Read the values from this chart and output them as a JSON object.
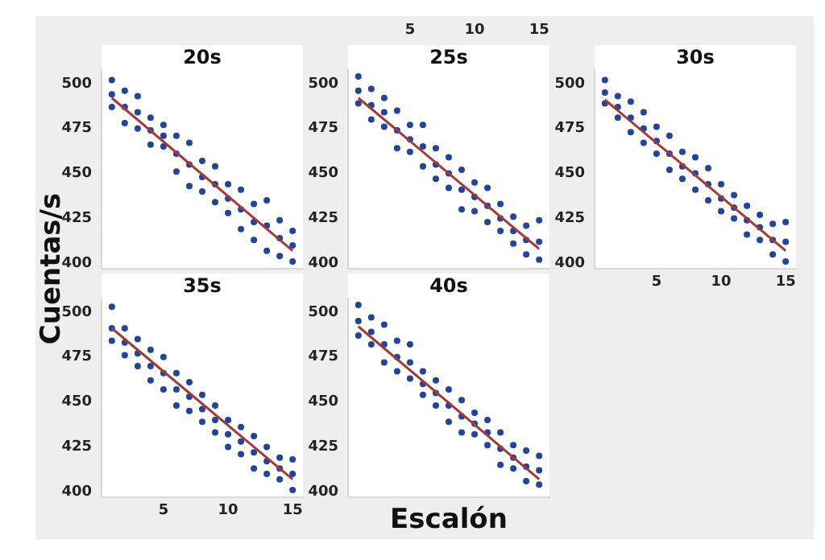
{
  "chart_data": [
    {
      "type": "scatter",
      "title": "20s",
      "xlim": [
        0.2,
        15.8
      ],
      "ylim": [
        397,
        508
      ],
      "yticks": [
        400,
        425,
        450,
        475,
        500
      ],
      "tick_labels": "y",
      "grid": false,
      "marker": "circle",
      "legend": false,
      "series": [
        {
          "type": "scatter",
          "color": "#23449c",
          "x": [
            1,
            1,
            1,
            2,
            2,
            2,
            3,
            3,
            3,
            4,
            4,
            4,
            5,
            5,
            5,
            6,
            6,
            6,
            7,
            7,
            7,
            8,
            8,
            8,
            9,
            9,
            9,
            10,
            10,
            10,
            11,
            11,
            11,
            12,
            12,
            12,
            13,
            13,
            13,
            14,
            14,
            14,
            15,
            15,
            15
          ],
          "values": [
            502,
            494,
            487,
            496,
            487,
            478,
            493,
            484,
            475,
            481,
            474,
            466,
            477,
            471,
            465,
            471,
            461,
            451,
            467,
            455,
            443,
            457,
            448,
            440,
            454,
            444,
            434,
            444,
            436,
            428,
            441,
            430,
            419,
            433,
            423,
            413,
            435,
            421,
            407,
            424,
            414,
            404,
            418,
            410,
            401
          ]
        },
        {
          "type": "line",
          "marker": "none",
          "color": "#a33a36",
          "x": [
            1,
            15
          ],
          "values": [
            492,
            407
          ]
        }
      ]
    },
    {
      "type": "scatter",
      "title": "25s",
      "xlim": [
        0.2,
        15.8
      ],
      "x2lim": [
        0.2,
        15.8
      ],
      "x2ticks": [
        5,
        10,
        15
      ],
      "ylim": [
        397,
        508
      ],
      "yticks": [
        400,
        425,
        450,
        475,
        500
      ],
      "tick_labels": "y",
      "grid": false,
      "marker": "circle",
      "legend": false,
      "series": [
        {
          "type": "scatter",
          "color": "#23449c",
          "x": [
            1,
            1,
            1,
            2,
            2,
            2,
            3,
            3,
            3,
            4,
            4,
            4,
            5,
            5,
            5,
            6,
            6,
            6,
            7,
            7,
            7,
            8,
            8,
            8,
            9,
            9,
            9,
            10,
            10,
            10,
            11,
            11,
            11,
            12,
            12,
            12,
            13,
            13,
            13,
            14,
            14,
            14,
            15,
            15,
            15
          ],
          "values": [
            504,
            496,
            489,
            497,
            488,
            480,
            492,
            484,
            476,
            485,
            474,
            464,
            477,
            469,
            462,
            477,
            465,
            454,
            464,
            455,
            447,
            459,
            450,
            442,
            452,
            441,
            430,
            445,
            437,
            429,
            442,
            432,
            423,
            433,
            425,
            418,
            426,
            418,
            411,
            421,
            413,
            405,
            424,
            412,
            402
          ]
        },
        {
          "type": "line",
          "marker": "none",
          "color": "#a33a36",
          "x": [
            1,
            15
          ],
          "values": [
            492,
            408
          ]
        }
      ]
    },
    {
      "type": "scatter",
      "title": "30s",
      "xlim": [
        0.2,
        15.8
      ],
      "xticks": [
        5,
        10,
        15
      ],
      "ylim": [
        397,
        508
      ],
      "yticks": [
        400,
        425,
        450,
        475,
        500
      ],
      "grid": false,
      "marker": "circle",
      "legend": false,
      "series": [
        {
          "type": "scatter",
          "color": "#23449c",
          "x": [
            1,
            1,
            1,
            2,
            2,
            2,
            3,
            3,
            3,
            4,
            4,
            4,
            5,
            5,
            5,
            6,
            6,
            6,
            7,
            7,
            7,
            8,
            8,
            8,
            9,
            9,
            9,
            10,
            10,
            10,
            11,
            11,
            11,
            12,
            12,
            12,
            13,
            13,
            13,
            14,
            14,
            14,
            15,
            15,
            15
          ],
          "values": [
            502,
            495,
            489,
            493,
            487,
            481,
            490,
            481,
            473,
            484,
            475,
            467,
            476,
            468,
            461,
            471,
            461,
            452,
            462,
            454,
            447,
            459,
            450,
            441,
            453,
            444,
            435,
            444,
            436,
            429,
            438,
            431,
            425,
            432,
            424,
            416,
            427,
            420,
            413,
            422,
            413,
            405,
            423,
            412,
            401
          ]
        },
        {
          "type": "line",
          "marker": "none",
          "color": "#a33a36",
          "x": [
            1,
            15
          ],
          "values": [
            491,
            407
          ]
        }
      ]
    },
    {
      "type": "scatter",
      "title": "35s",
      "ylabel": "Cuentas/s",
      "xlim": [
        0.2,
        15.8
      ],
      "xticks": [
        5,
        10,
        15
      ],
      "ylim": [
        397,
        508
      ],
      "yticks": [
        400,
        425,
        450,
        475,
        500
      ],
      "grid": false,
      "marker": "circle",
      "legend": false,
      "series": [
        {
          "type": "scatter",
          "color": "#23449c",
          "x": [
            1,
            1,
            1,
            2,
            2,
            2,
            3,
            3,
            3,
            4,
            4,
            4,
            5,
            5,
            5,
            6,
            6,
            6,
            7,
            7,
            7,
            8,
            8,
            8,
            9,
            9,
            9,
            10,
            10,
            10,
            11,
            11,
            11,
            12,
            12,
            12,
            13,
            13,
            13,
            14,
            14,
            14,
            15,
            15,
            15
          ],
          "values": [
            503,
            491,
            484,
            491,
            483,
            476,
            485,
            477,
            470,
            479,
            470,
            462,
            475,
            466,
            457,
            466,
            457,
            448,
            461,
            453,
            445,
            454,
            446,
            439,
            448,
            440,
            433,
            440,
            432,
            425,
            436,
            428,
            421,
            431,
            422,
            413,
            425,
            417,
            410,
            419,
            413,
            407,
            418,
            410,
            401
          ]
        },
        {
          "type": "line",
          "marker": "none",
          "color": "#a33a36",
          "x": [
            1,
            15
          ],
          "values": [
            491,
            407
          ]
        }
      ]
    },
    {
      "type": "scatter",
      "title": "40s",
      "xlabel": "Escalón",
      "xlim": [
        0.2,
        15.8
      ],
      "ylim": [
        397,
        508
      ],
      "yticks": [
        400,
        425,
        450,
        475,
        500
      ],
      "tick_labels": "y",
      "grid": false,
      "marker": "circle",
      "legend": false,
      "series": [
        {
          "type": "scatter",
          "color": "#23449c",
          "x": [
            1,
            1,
            1,
            2,
            2,
            2,
            3,
            3,
            3,
            4,
            4,
            4,
            5,
            5,
            5,
            6,
            6,
            6,
            7,
            7,
            7,
            8,
            8,
            8,
            9,
            9,
            9,
            10,
            10,
            10,
            11,
            11,
            11,
            12,
            12,
            12,
            13,
            13,
            13,
            14,
            14,
            14,
            15,
            15,
            15
          ],
          "values": [
            504,
            495,
            487,
            497,
            489,
            482,
            493,
            482,
            472,
            484,
            475,
            467,
            482,
            472,
            463,
            467,
            460,
            454,
            462,
            455,
            448,
            457,
            448,
            439,
            451,
            442,
            433,
            444,
            438,
            432,
            440,
            433,
            426,
            433,
            424,
            415,
            426,
            419,
            413,
            423,
            414,
            406,
            420,
            412,
            404
          ]
        },
        {
          "type": "line",
          "marker": "none",
          "color": "#a33a36",
          "x": [
            1,
            15
          ],
          "values": [
            492,
            407
          ]
        }
      ]
    }
  ]
}
